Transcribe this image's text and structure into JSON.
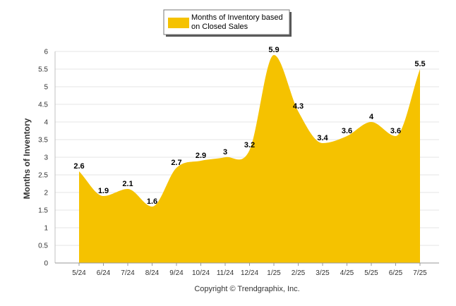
{
  "chart_data": {
    "type": "area",
    "categories": [
      "5/24",
      "6/24",
      "7/24",
      "8/24",
      "9/24",
      "10/24",
      "11/24",
      "12/24",
      "1/25",
      "2/25",
      "3/25",
      "4/25",
      "5/25",
      "6/25",
      "7/25"
    ],
    "series": [
      {
        "name_lines": [
          "Months of Inventory based",
          "on Closed Sales"
        ],
        "values": [
          2.6,
          1.9,
          2.1,
          1.6,
          2.7,
          2.9,
          3,
          3.2,
          5.9,
          4.3,
          3.4,
          3.6,
          4,
          3.6,
          5.5
        ],
        "labels": [
          "2.6",
          "1.9",
          "2.1",
          "1.6",
          "2.7",
          "2.9",
          "3",
          "3.2",
          "5.9",
          "4.3",
          "3.4",
          "3.6",
          "4",
          "3.6",
          "5.5"
        ]
      }
    ],
    "ylabel": "Months of Inventory",
    "ylim": [
      0,
      6
    ],
    "yticks": [
      "0",
      "0.5",
      "1",
      "1.5",
      "2",
      "2.5",
      "3",
      "3.5",
      "4",
      "4.5",
      "5",
      "5.5",
      "6"
    ],
    "grid": true,
    "legend": "top-center",
    "fill_color": "#F5C200"
  },
  "footer": {
    "copyright": "Copyright © Trendgraphix, Inc."
  }
}
